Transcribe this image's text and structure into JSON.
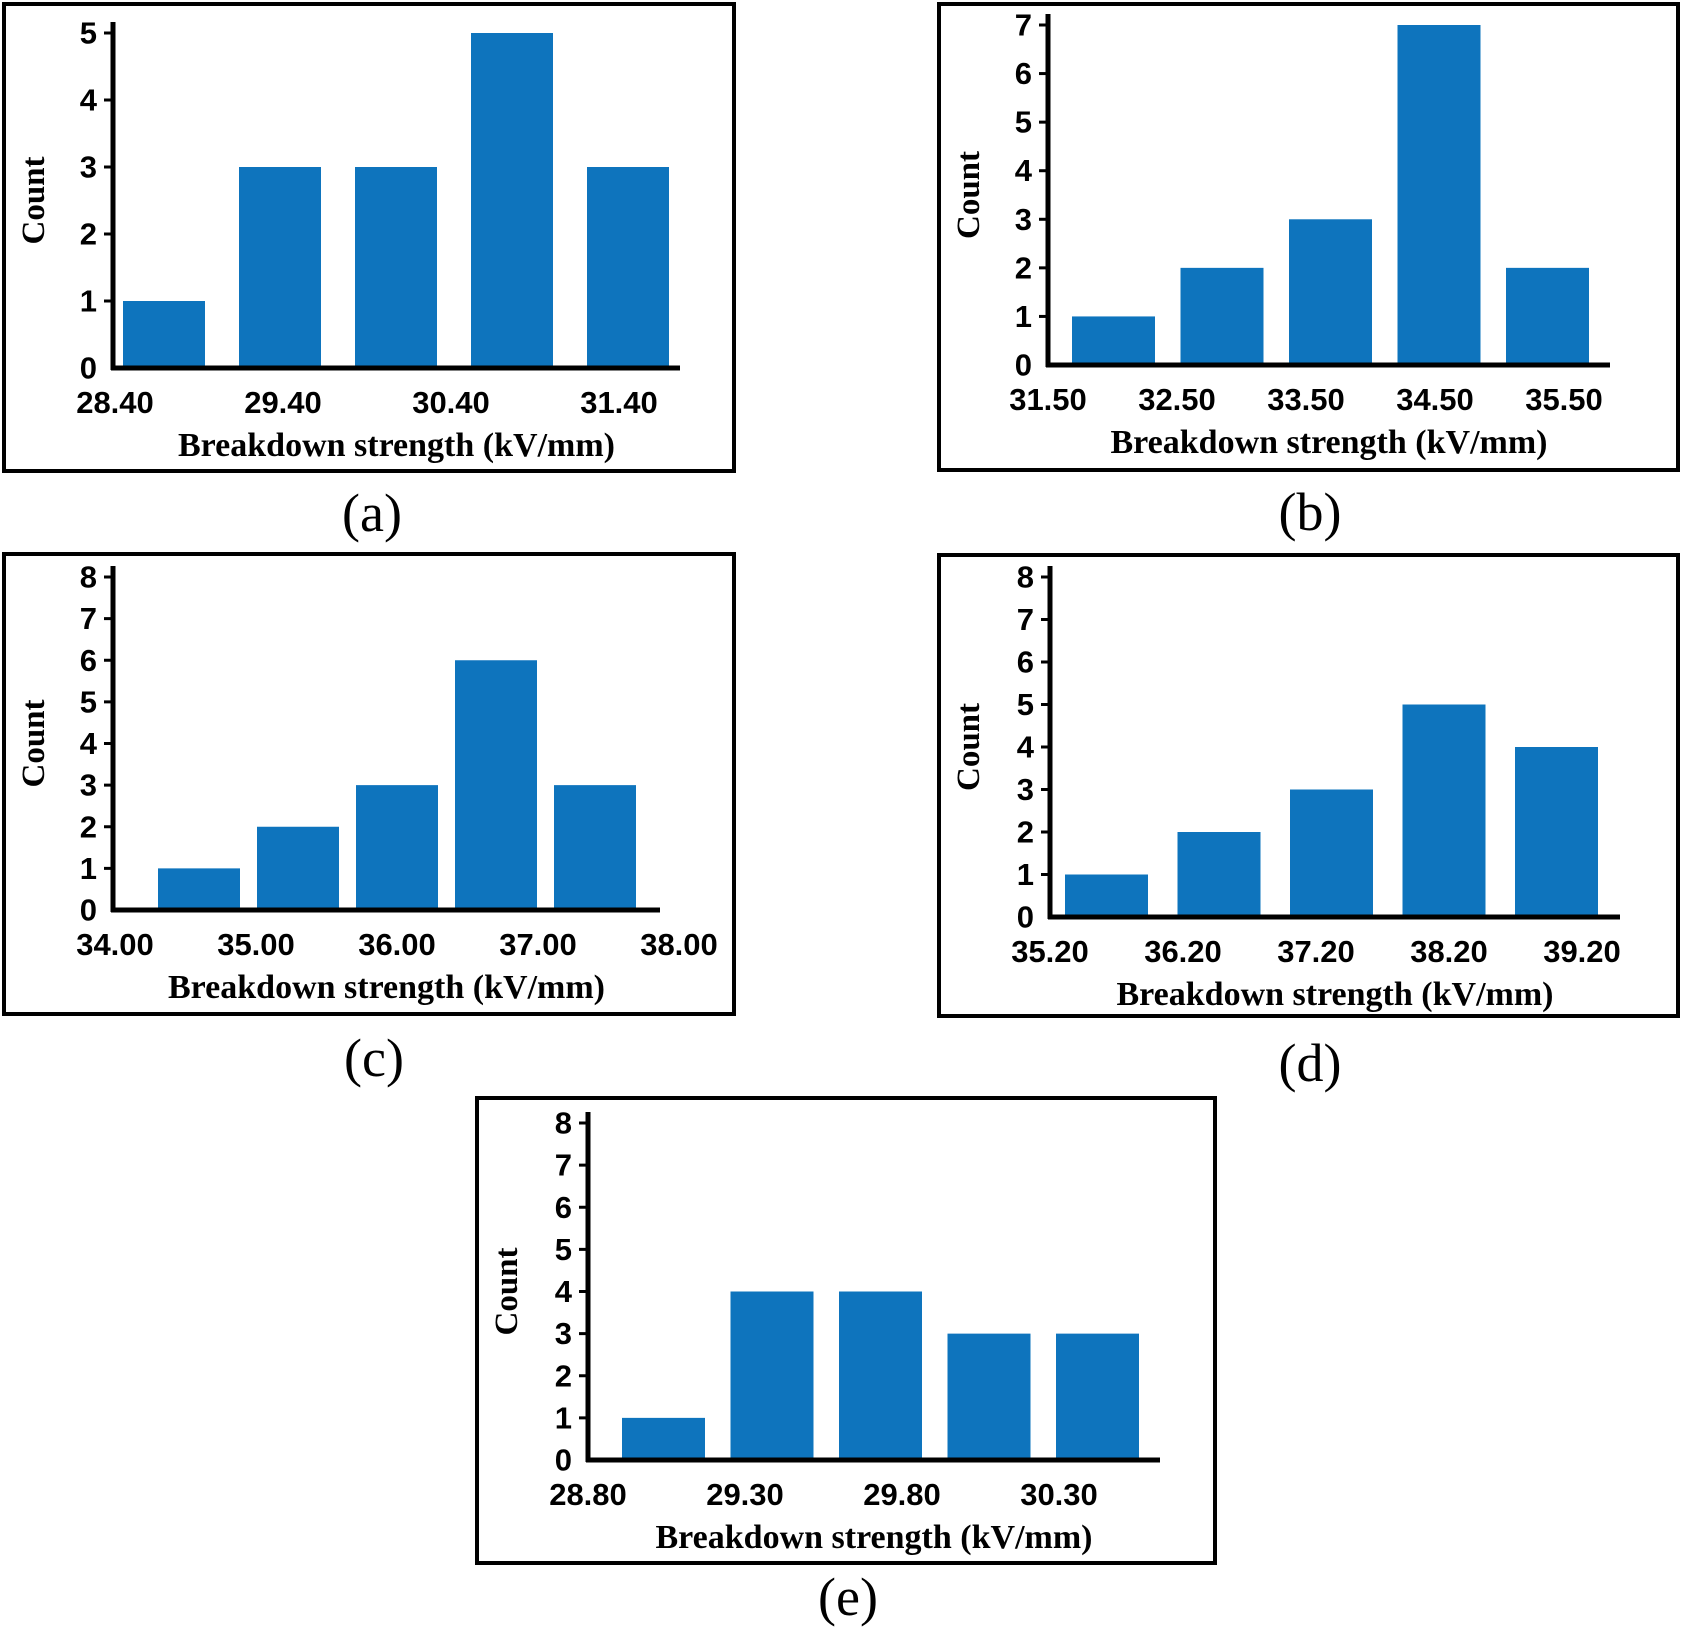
{
  "figure": {
    "xlabel": "Breakdown strength (kV/mm)",
    "ylabel": "Count",
    "bar_color": "#0e74bd",
    "axis_color": "#000000"
  },
  "chart_data": [
    {
      "panel": "a",
      "caption": "(a)",
      "type": "bar",
      "title": "",
      "xlabel": "Breakdown strength (kV/mm)",
      "ylabel": "Count",
      "x_tick_labels": [
        "28.40",
        "29.40",
        "30.40",
        "31.40"
      ],
      "values": [
        1,
        3,
        3,
        5,
        3
      ],
      "y_ticks": [
        0,
        1,
        2,
        3,
        4,
        5
      ],
      "ylim": [
        0,
        5
      ],
      "grid": false,
      "legend": false
    },
    {
      "panel": "b",
      "caption": "(b)",
      "type": "bar",
      "title": "",
      "xlabel": "Breakdown strength (kV/mm)",
      "ylabel": "Count",
      "x_tick_labels": [
        "31.50",
        "32.50",
        "33.50",
        "34.50",
        "35.50"
      ],
      "values": [
        1,
        2,
        3,
        7,
        2
      ],
      "y_ticks": [
        0,
        1,
        2,
        3,
        4,
        5,
        6,
        7
      ],
      "ylim": [
        0,
        7
      ],
      "grid": false,
      "legend": false
    },
    {
      "panel": "c",
      "caption": "(c)",
      "type": "bar",
      "title": "",
      "xlabel": "Breakdown strength (kV/mm)",
      "ylabel": "Count",
      "x_tick_labels": [
        "34.00",
        "35.00",
        "36.00",
        "37.00",
        "38.00"
      ],
      "values": [
        1,
        2,
        3,
        6,
        3
      ],
      "y_ticks": [
        0,
        1,
        2,
        3,
        4,
        5,
        6,
        7,
        8
      ],
      "ylim": [
        0,
        8
      ],
      "grid": false,
      "legend": false
    },
    {
      "panel": "d",
      "caption": "(d)",
      "type": "bar",
      "title": "",
      "xlabel": "Breakdown strength (kV/mm)",
      "ylabel": "Count",
      "x_tick_labels": [
        "35.20",
        "36.20",
        "37.20",
        "38.20",
        "39.20"
      ],
      "values": [
        1,
        2,
        3,
        5,
        4
      ],
      "y_ticks": [
        0,
        1,
        2,
        3,
        4,
        5,
        6,
        7,
        8
      ],
      "ylim": [
        0,
        8
      ],
      "grid": false,
      "legend": false
    },
    {
      "panel": "e",
      "caption": "(e)",
      "type": "bar",
      "title": "",
      "xlabel": "Breakdown strength (kV/mm)",
      "ylabel": "Count",
      "x_tick_labels": [
        "28.80",
        "29.30",
        "29.80",
        "30.30"
      ],
      "values": [
        1,
        4,
        4,
        3,
        3
      ],
      "y_ticks": [
        0,
        1,
        2,
        3,
        4,
        5,
        6,
        7,
        8
      ],
      "ylim": [
        0,
        8
      ],
      "grid": false,
      "legend": false
    }
  ]
}
